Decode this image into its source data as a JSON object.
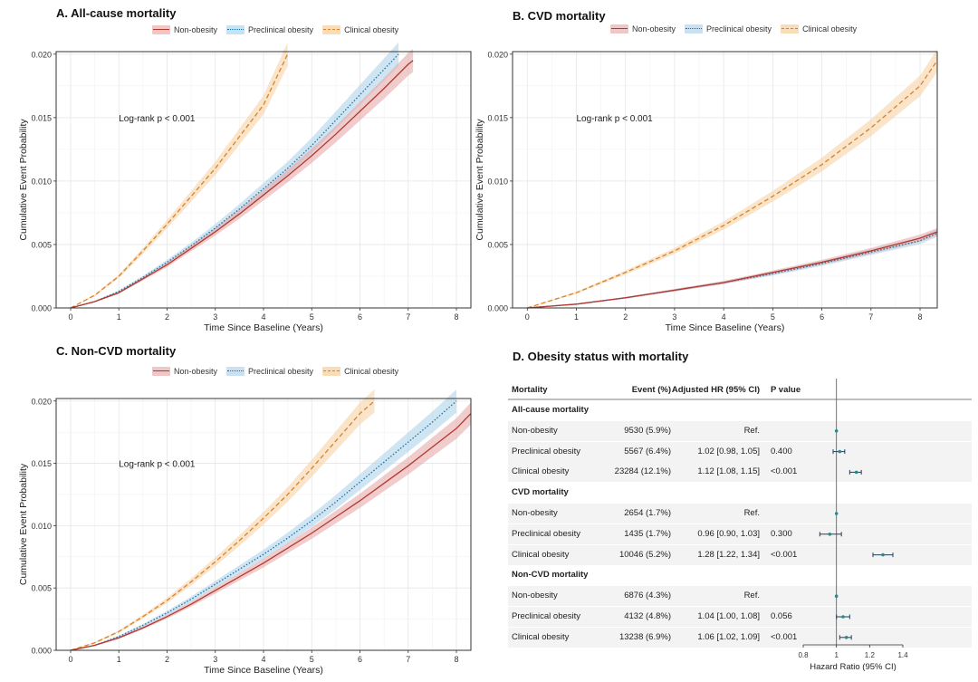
{
  "legend": {
    "items": [
      {
        "label": "Non-obesity",
        "color": "#b03a2e",
        "fill": "#e6a3a3",
        "dash": "solid"
      },
      {
        "label": "Preclinical obesity",
        "color": "#1f6fa8",
        "fill": "#a9cfe8",
        "dash": "dot"
      },
      {
        "label": "Clinical obesity",
        "color": "#d9822b",
        "fill": "#f5cf9e",
        "dash": "dash"
      }
    ]
  },
  "chart_data": [
    {
      "type": "line",
      "title": "A. All-cause mortality",
      "xlabel": "Time Since Baseline (Years)",
      "ylabel": "Cumulative Event Probability",
      "xlim": [
        -0.3,
        8.3
      ],
      "ylim": [
        0,
        0.0202
      ],
      "xticks": [
        "0",
        "1",
        "2",
        "3",
        "4",
        "5",
        "6",
        "7",
        "8"
      ],
      "yticks": [
        "0.000",
        "0.005",
        "0.010",
        "0.015",
        "0.020"
      ],
      "annotation": "Log-rank p < 0.001",
      "series": [
        {
          "name": "Non-obesity",
          "x": [
            0,
            0.5,
            1,
            1.5,
            2,
            2.5,
            3,
            3.5,
            4,
            4.5,
            5,
            5.5,
            6,
            6.5,
            7,
            7.1
          ],
          "y": [
            0,
            0.0005,
            0.0012,
            0.0023,
            0.0034,
            0.0047,
            0.006,
            0.0074,
            0.0089,
            0.0104,
            0.012,
            0.0137,
            0.0155,
            0.0173,
            0.0192,
            0.0195
          ]
        },
        {
          "name": "Preclinical obesity",
          "x": [
            0,
            0.5,
            1,
            1.5,
            2,
            2.5,
            3,
            3.5,
            4,
            4.5,
            5,
            5.5,
            6,
            6.5,
            6.8
          ],
          "y": [
            0,
            0.0005,
            0.0013,
            0.0024,
            0.0036,
            0.0049,
            0.0063,
            0.0078,
            0.0094,
            0.011,
            0.0128,
            0.0148,
            0.0168,
            0.0188,
            0.02
          ]
        },
        {
          "name": "Clinical obesity",
          "x": [
            0,
            0.5,
            1,
            1.5,
            2,
            2.5,
            3,
            3.5,
            4,
            4.5
          ],
          "y": [
            0,
            0.001,
            0.0025,
            0.0045,
            0.0066,
            0.0088,
            0.011,
            0.0135,
            0.016,
            0.02
          ]
        }
      ]
    },
    {
      "type": "line",
      "title": "B. CVD mortality",
      "xlabel": "Time Since Baseline (Years)",
      "ylabel": "Cumulative Event Probability",
      "xlim": [
        -0.3,
        8.35
      ],
      "ylim": [
        0,
        0.0202
      ],
      "xticks": [
        "0",
        "1",
        "2",
        "3",
        "4",
        "5",
        "6",
        "7",
        "8"
      ],
      "yticks": [
        "0.000",
        "0.005",
        "0.010",
        "0.015",
        "0.020"
      ],
      "annotation": "Log-rank p < 0.001",
      "series": [
        {
          "name": "Non-obesity",
          "x": [
            0,
            1,
            2,
            3,
            4,
            5,
            6,
            7,
            8,
            8.35
          ],
          "y": [
            0,
            0.0003,
            0.0008,
            0.0014,
            0.002,
            0.0028,
            0.0036,
            0.0045,
            0.0055,
            0.006
          ]
        },
        {
          "name": "Preclinical obesity",
          "x": [
            0,
            1,
            2,
            3,
            4,
            5,
            6,
            7,
            8,
            8.35
          ],
          "y": [
            0,
            0.0003,
            0.0008,
            0.0014,
            0.002,
            0.0027,
            0.0035,
            0.0044,
            0.0053,
            0.0059
          ]
        },
        {
          "name": "Clinical obesity",
          "x": [
            0,
            1,
            2,
            3,
            4,
            5,
            6,
            7,
            8,
            8.35
          ],
          "y": [
            0,
            0.0012,
            0.0028,
            0.0045,
            0.0065,
            0.0088,
            0.0113,
            0.0142,
            0.0175,
            0.0195
          ]
        }
      ]
    },
    {
      "type": "line",
      "title": "C. Non-CVD mortality",
      "xlabel": "Time Since Baseline (Years)",
      "ylabel": "Cumulative Event Probability",
      "xlim": [
        -0.3,
        8.3
      ],
      "ylim": [
        0,
        0.0202
      ],
      "xticks": [
        "0",
        "1",
        "2",
        "3",
        "4",
        "5",
        "6",
        "7",
        "8"
      ],
      "yticks": [
        "0.000",
        "0.005",
        "0.010",
        "0.015",
        "0.020"
      ],
      "annotation": "Log-rank p < 0.001",
      "series": [
        {
          "name": "Non-obesity",
          "x": [
            0,
            0.5,
            1,
            1.5,
            2,
            2.5,
            3,
            3.5,
            4,
            4.5,
            5,
            5.5,
            6,
            6.5,
            7,
            7.5,
            8,
            8.3
          ],
          "y": [
            0,
            0.0004,
            0.001,
            0.0018,
            0.0027,
            0.0037,
            0.0048,
            0.0059,
            0.007,
            0.0082,
            0.0094,
            0.0107,
            0.012,
            0.0134,
            0.0148,
            0.0163,
            0.0178,
            0.019
          ]
        },
        {
          "name": "Preclinical obesity",
          "x": [
            0,
            0.5,
            1,
            1.5,
            2,
            2.5,
            3,
            3.5,
            4,
            4.5,
            5,
            5.5,
            6,
            6.5,
            7,
            7.5,
            8
          ],
          "y": [
            0,
            0.0004,
            0.0011,
            0.002,
            0.003,
            0.0041,
            0.0053,
            0.0065,
            0.0077,
            0.009,
            0.0104,
            0.0119,
            0.0135,
            0.0151,
            0.0167,
            0.0183,
            0.02
          ]
        },
        {
          "name": "Clinical obesity",
          "x": [
            0,
            0.5,
            1,
            1.5,
            2,
            2.5,
            3,
            3.5,
            4,
            4.5,
            5,
            5.5,
            6,
            6.3
          ],
          "y": [
            0,
            0.0006,
            0.0015,
            0.0027,
            0.004,
            0.0055,
            0.0071,
            0.0088,
            0.0106,
            0.0125,
            0.0146,
            0.0168,
            0.019,
            0.02
          ]
        }
      ]
    },
    {
      "type": "table",
      "title": "D. Obesity status with mortality",
      "xlabel": "Hazard Ratio (95% CI)",
      "xlim": [
        0.8,
        1.4
      ],
      "xticks": [
        "0.8",
        "1",
        "1.2",
        "1.4"
      ],
      "reference": 1,
      "columns": [
        "Mortality",
        "Event (%)",
        "Adjusted HR (95% CI)",
        "P value"
      ],
      "rows": [
        {
          "kind": "section",
          "name": "All-cause mortality"
        },
        {
          "kind": "data",
          "name": "Non-obesity",
          "event": "9530 (5.9%)",
          "hr_text": "Ref.",
          "p": "",
          "hr": 1,
          "lo": 1,
          "hi": 1
        },
        {
          "kind": "data",
          "name": "Preclinical obesity",
          "event": "5567 (6.4%)",
          "hr_text": "1.02 [0.98, 1.05]",
          "p": "0.400",
          "hr": 1.02,
          "lo": 0.98,
          "hi": 1.05
        },
        {
          "kind": "data",
          "name": "Clinical obesity",
          "event": "23284 (12.1%)",
          "hr_text": "1.12 [1.08, 1.15]",
          "p": "<0.001",
          "hr": 1.12,
          "lo": 1.08,
          "hi": 1.15
        },
        {
          "kind": "section",
          "name": "CVD mortality"
        },
        {
          "kind": "data",
          "name": "Non-obesity",
          "event": "2654 (1.7%)",
          "hr_text": "Ref.",
          "p": "",
          "hr": 1,
          "lo": 1,
          "hi": 1
        },
        {
          "kind": "data",
          "name": "Preclinical obesity",
          "event": "1435 (1.7%)",
          "hr_text": "0.96 [0.90, 1.03]",
          "p": "0.300",
          "hr": 0.96,
          "lo": 0.9,
          "hi": 1.03
        },
        {
          "kind": "data",
          "name": "Clinical obesity",
          "event": "10046 (5.2%)",
          "hr_text": "1.28 [1.22, 1.34]",
          "p": "<0.001",
          "hr": 1.28,
          "lo": 1.22,
          "hi": 1.34
        },
        {
          "kind": "section",
          "name": "Non-CVD mortality"
        },
        {
          "kind": "data",
          "name": "Non-obesity",
          "event": "6876 (4.3%)",
          "hr_text": "Ref.",
          "p": "",
          "hr": 1,
          "lo": 1,
          "hi": 1
        },
        {
          "kind": "data",
          "name": "Preclinical obesity",
          "event": "4132 (4.8%)",
          "hr_text": "1.04 [1.00, 1.08]",
          "p": "0.056",
          "hr": 1.04,
          "lo": 1.0,
          "hi": 1.08
        },
        {
          "kind": "data",
          "name": "Clinical obesity",
          "event": "13238 (6.9%)",
          "hr_text": "1.06 [1.02, 1.09]",
          "p": "<0.001",
          "hr": 1.06,
          "lo": 1.02,
          "hi": 1.09
        }
      ]
    }
  ]
}
